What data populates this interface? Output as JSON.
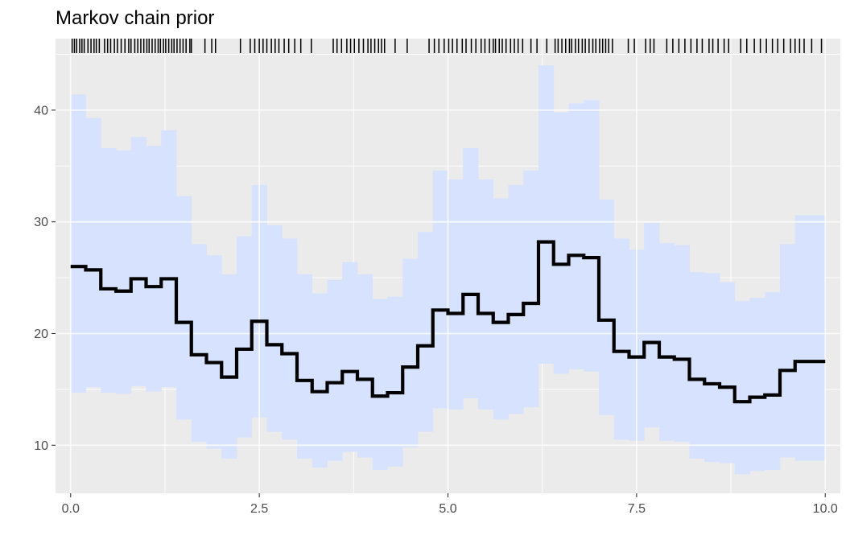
{
  "chart_data": {
    "type": "step",
    "title": "Markov chain prior",
    "xlabel": "",
    "ylabel": "",
    "xlim": [
      -0.2,
      10.2
    ],
    "ylim": [
      5.7,
      46.4
    ],
    "x_ticks": [
      0,
      2.5,
      5,
      7.5,
      10
    ],
    "x_tick_labels": [
      "0.0",
      "2.5",
      "5.0",
      "7.5",
      "10.0"
    ],
    "y_ticks": [
      10,
      20,
      30,
      40
    ],
    "y_tick_labels": [
      "10",
      "20",
      "30",
      "40"
    ],
    "bin_width": 0.2,
    "bin_starts": [
      0,
      0.2,
      0.4,
      0.6,
      0.8,
      1.0,
      1.2,
      1.4,
      1.6,
      1.8,
      2.0,
      2.2,
      2.4,
      2.6,
      2.8,
      3.0,
      3.2,
      3.4,
      3.6,
      3.8,
      4.0,
      4.2,
      4.4,
      4.6,
      4.8,
      5.0,
      5.2,
      5.4,
      5.6,
      5.8,
      6.0,
      6.2,
      6.4,
      6.6,
      6.8,
      7.0,
      7.2,
      7.4,
      7.6,
      7.8,
      8.0,
      8.2,
      8.4,
      8.6,
      8.8,
      9.0,
      9.2,
      9.4,
      9.6,
      9.8
    ],
    "series": [
      {
        "name": "median",
        "color": "#000000",
        "values": [
          26.0,
          25.7,
          24.0,
          23.8,
          24.9,
          24.2,
          24.9,
          21.0,
          18.1,
          17.4,
          16.1,
          18.6,
          21.1,
          19.0,
          18.2,
          15.8,
          14.8,
          15.6,
          16.6,
          15.9,
          14.4,
          14.7,
          17.0,
          18.9,
          22.1,
          21.8,
          23.5,
          21.8,
          21.0,
          21.7,
          22.7,
          28.2,
          26.2,
          27.0,
          26.8,
          21.2,
          18.4,
          17.9,
          19.2,
          17.9,
          17.7,
          15.9,
          15.5,
          15.2,
          13.9,
          14.3,
          14.5,
          16.7,
          17.5,
          17.5
        ]
      },
      {
        "name": "upper",
        "color": "#d6e2fe",
        "values": [
          41.4,
          39.3,
          36.6,
          36.4,
          37.6,
          36.8,
          38.2,
          32.3,
          28.0,
          27.0,
          25.3,
          28.7,
          33.3,
          29.7,
          28.5,
          25.3,
          23.6,
          24.8,
          26.4,
          25.3,
          23.1,
          23.3,
          26.7,
          29.1,
          34.6,
          33.8,
          36.6,
          33.8,
          32.1,
          33.3,
          34.6,
          44.0,
          39.8,
          40.6,
          40.9,
          32.0,
          28.5,
          27.5,
          29.9,
          28.1,
          27.9,
          25.5,
          25.4,
          24.6,
          22.9,
          23.2,
          23.7,
          28.0,
          30.6,
          30.6
        ]
      },
      {
        "name": "lower",
        "color": "#d6e2fe",
        "values": [
          14.7,
          15.2,
          14.7,
          14.6,
          15.3,
          14.8,
          15.2,
          12.3,
          10.3,
          9.7,
          8.8,
          10.7,
          12.5,
          11.2,
          10.5,
          8.8,
          8.0,
          8.6,
          9.4,
          8.9,
          7.8,
          8.1,
          9.8,
          11.2,
          13.3,
          13.2,
          14.2,
          13.2,
          12.3,
          12.8,
          13.4,
          17.3,
          16.4,
          16.8,
          16.6,
          12.7,
          10.5,
          10.4,
          11.6,
          10.4,
          10.3,
          8.8,
          8.5,
          8.4,
          7.4,
          7.7,
          7.8,
          8.9,
          8.6,
          8.6
        ]
      }
    ],
    "rug_x": [
      0.02,
      0.05,
      0.08,
      0.12,
      0.15,
      0.18,
      0.23,
      0.27,
      0.31,
      0.34,
      0.38,
      0.45,
      0.49,
      0.53,
      0.58,
      0.62,
      0.67,
      0.72,
      0.77,
      0.8,
      0.85,
      0.89,
      0.93,
      0.97,
      1.01,
      1.04,
      1.08,
      1.12,
      1.16,
      1.19,
      1.23,
      1.26,
      1.3,
      1.34,
      1.37,
      1.41,
      1.45,
      1.49,
      1.53,
      1.58,
      1.6,
      1.78,
      1.87,
      1.92,
      2.25,
      2.38,
      2.44,
      2.5,
      2.55,
      2.6,
      2.66,
      2.71,
      2.76,
      2.83,
      2.89,
      2.97,
      3.05,
      3.19,
      3.48,
      3.53,
      3.59,
      3.66,
      3.71,
      3.76,
      3.82,
      3.88,
      3.94,
      3.98,
      4.03,
      4.08,
      4.12,
      4.16,
      4.3,
      4.46,
      4.75,
      4.82,
      4.88,
      4.95,
      5.01,
      5.06,
      5.12,
      5.19,
      5.24,
      5.31,
      5.37,
      5.44,
      5.49,
      5.55,
      5.6,
      5.63,
      5.68,
      5.72,
      5.77,
      5.83,
      5.88,
      5.93,
      5.99,
      6.1,
      6.18,
      6.31,
      6.42,
      6.46,
      6.51,
      6.56,
      6.61,
      6.64,
      6.69,
      6.73,
      6.78,
      6.82,
      6.87,
      6.92,
      6.96,
      7.01,
      7.05,
      7.09,
      7.13,
      7.18,
      7.39,
      7.47,
      7.62,
      7.68,
      7.73,
      7.9,
      7.98,
      8.06,
      8.14,
      8.22,
      8.3,
      8.37,
      8.46,
      8.51,
      8.58,
      8.66,
      8.72,
      8.88,
      8.96,
      9.06,
      9.14,
      9.22,
      9.3,
      9.37,
      9.45,
      9.54,
      9.6,
      9.66,
      9.72,
      9.82,
      9.95
    ]
  }
}
